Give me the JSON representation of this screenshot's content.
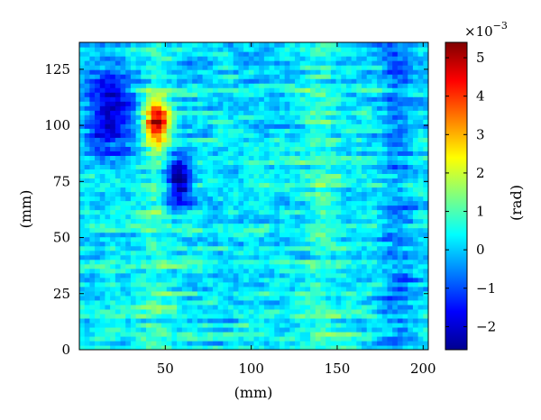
{
  "chart_data": {
    "type": "heatmap",
    "title": "",
    "xlabel": "(mm)",
    "ylabel": "(mm)",
    "xlim": [
      0,
      203
    ],
    "ylim": [
      0,
      137
    ],
    "x_ticks": [
      50,
      100,
      150,
      200
    ],
    "y_ticks": [
      0,
      25,
      50,
      75,
      100,
      125
    ],
    "colorbar": {
      "label": "(rad)",
      "multiplier": "×10",
      "exponent": "−3",
      "range": [
        -2.6,
        5.4
      ],
      "ticks": [
        -2,
        -1,
        0,
        1,
        2,
        3,
        4,
        5
      ],
      "tick_labels": [
        "−2",
        "−1",
        "0",
        "1",
        "2",
        "3",
        "4",
        "5"
      ],
      "colormap": "jet"
    },
    "features": [
      {
        "kind": "peak",
        "x": 45,
        "y": 102,
        "value": 5.0
      },
      {
        "kind": "trough",
        "x": 58,
        "y": 76,
        "value": -2.5
      },
      {
        "kind": "trough-region",
        "x": 18,
        "y": 105,
        "value": -1.6
      },
      {
        "kind": "band",
        "x": 45,
        "value": 1.2
      },
      {
        "kind": "band",
        "x": 140,
        "value": 1.3
      },
      {
        "kind": "band",
        "x": 185,
        "value": -1.2
      }
    ]
  }
}
